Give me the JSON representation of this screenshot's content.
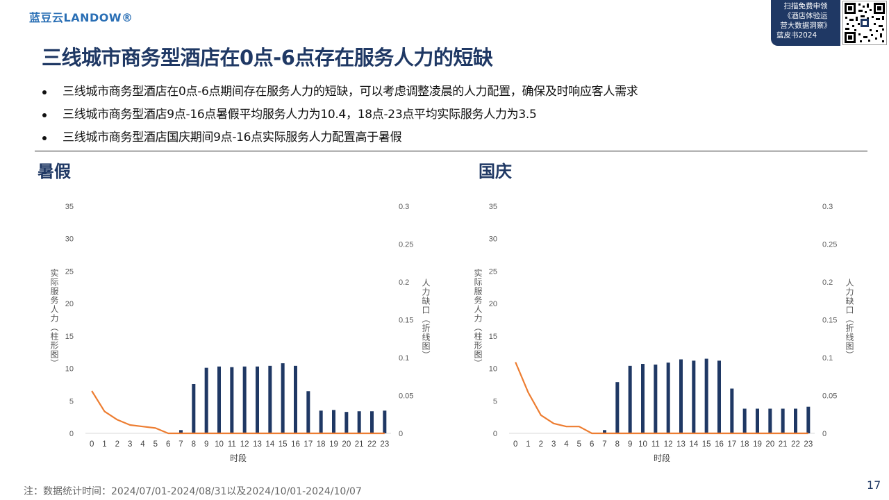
{
  "header": {
    "logo_text": "蓝豆云LANDOW®",
    "promo_lines": [
      "扫描免费申领",
      "《酒店体验运",
      "营大数据洞察》",
      "蓝皮书2024"
    ],
    "qr_icon": "qr-code-icon"
  },
  "title": "三线城市商务型酒店在0点-6点存在服务人力的短缺",
  "bullets": [
    "三线城市商务型酒店在0点-6点期间存在服务人力的短缺，可以考虑调整凌晨的人力配置，确保及时响应客人需求",
    "三线城市商务型酒店9点-16点暑假平均服务人力为10.4，18点-23点平均实际服务人力为3.5",
    "三线城市商务型酒店国庆期间9点-16点实际服务人力配置高于暑假"
  ],
  "footer": "注：数据统计时间：2024/07/01-2024/08/31以及2024/10/01-2024/10/07",
  "page_number": "17",
  "colors": {
    "brand": "#1f3864",
    "bar": "#1f3864",
    "line": "#ed7d31"
  },
  "chart_data": [
    {
      "type": "bar",
      "title": "暑假",
      "xlabel": "时段",
      "ylabel": "实际服务人力（柱形图）",
      "y2label": "人力缺口（折线图）",
      "ylim": [
        0,
        35
      ],
      "y2lim": [
        0,
        0.3
      ],
      "yticks": [
        "0",
        "5",
        "10",
        "15",
        "20",
        "25",
        "30",
        "35"
      ],
      "y2ticks": [
        "0",
        "0.05",
        "0.1",
        "0.15",
        "0.2",
        "0.25",
        "0.3"
      ],
      "categories": [
        "0",
        "1",
        "2",
        "3",
        "4",
        "5",
        "6",
        "7",
        "8",
        "9",
        "10",
        "11",
        "12",
        "13",
        "14",
        "15",
        "16",
        "17",
        "18",
        "19",
        "20",
        "21",
        "22",
        "23"
      ],
      "series": [
        {
          "type": "bar",
          "axis": "left",
          "values": [
            0,
            0,
            0,
            0,
            0,
            0,
            0,
            0.5,
            7.6,
            10.1,
            10.3,
            10.2,
            10.3,
            10.3,
            10.4,
            10.8,
            10.4,
            6.5,
            3.5,
            3.6,
            3.3,
            3.4,
            3.4,
            3.5
          ]
        },
        {
          "type": "line",
          "axis": "right",
          "values": [
            0.056,
            0.029,
            0.018,
            0.011,
            0.009,
            0.007,
            0,
            0,
            0,
            0,
            0,
            0,
            0,
            0,
            0,
            0,
            0,
            0,
            0,
            0,
            0,
            0,
            0,
            0
          ]
        }
      ]
    },
    {
      "type": "bar",
      "title": "国庆",
      "xlabel": "时段",
      "ylabel": "实际服务人力（柱形图）",
      "y2label": "人力缺口（折线图）",
      "ylim": [
        0,
        35
      ],
      "y2lim": [
        0,
        0.3
      ],
      "yticks": [
        "0",
        "5",
        "10",
        "15",
        "20",
        "25",
        "30",
        "35"
      ],
      "y2ticks": [
        "0",
        "0.05",
        "0.1",
        "0.15",
        "0.2",
        "0.25",
        "0.3"
      ],
      "categories": [
        "0",
        "1",
        "2",
        "3",
        "4",
        "5",
        "6",
        "7",
        "8",
        "9",
        "10",
        "11",
        "12",
        "13",
        "14",
        "15",
        "16",
        "17",
        "18",
        "19",
        "20",
        "21",
        "22",
        "23"
      ],
      "series": [
        {
          "type": "bar",
          "axis": "left",
          "values": [
            0,
            0,
            0,
            0,
            0,
            0,
            0,
            0.5,
            7.9,
            10.4,
            10.7,
            10.6,
            10.9,
            11.4,
            11.2,
            11.5,
            11.2,
            6.9,
            3.8,
            3.8,
            3.8,
            3.8,
            3.8,
            4.1
          ]
        },
        {
          "type": "line",
          "axis": "right",
          "values": [
            0.094,
            0.054,
            0.024,
            0.013,
            0.009,
            0.009,
            0,
            0,
            0,
            0,
            0,
            0,
            0,
            0,
            0,
            0,
            0,
            0,
            0,
            0,
            0,
            0,
            0,
            0
          ]
        }
      ]
    }
  ]
}
